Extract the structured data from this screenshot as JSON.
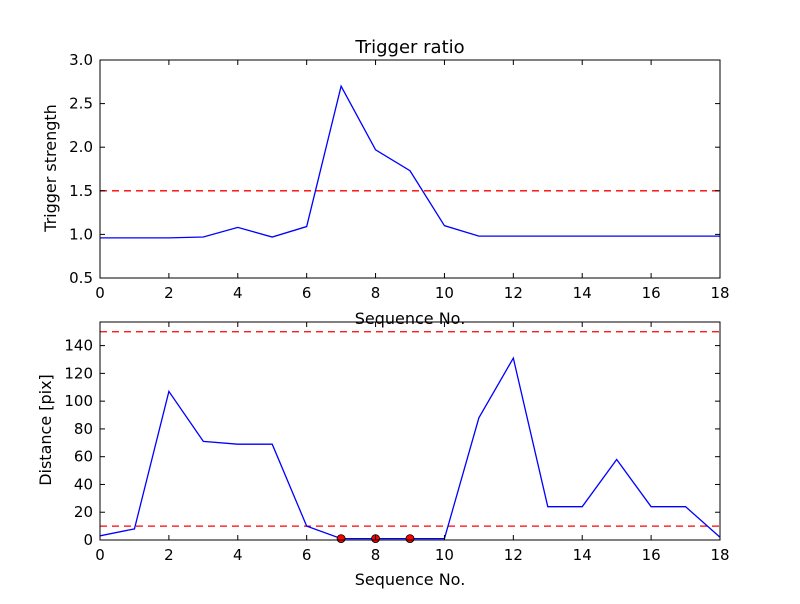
{
  "chart_data": [
    {
      "type": "line",
      "title": "Trigger ratio",
      "xlabel": "Sequence No.",
      "ylabel": "Trigger strength",
      "xlim": [
        0,
        18
      ],
      "ylim": [
        0.5,
        3.0
      ],
      "xticks": [
        "0",
        "2",
        "4",
        "6",
        "8",
        "10",
        "12",
        "14",
        "16",
        "18"
      ],
      "yticks": [
        "0.5",
        "1.0",
        "1.5",
        "2.0",
        "2.5",
        "3.0"
      ],
      "grid": false,
      "series": [
        {
          "color": "#0000ff",
          "x": [
            0,
            1,
            2,
            3,
            4,
            5,
            6,
            7,
            8,
            9,
            10,
            11,
            12,
            13,
            14,
            15,
            16,
            17,
            18
          ],
          "values": [
            0.96,
            0.96,
            0.96,
            0.97,
            1.08,
            0.97,
            1.09,
            2.7,
            1.97,
            1.73,
            1.1,
            0.98,
            0.98,
            0.98,
            0.98,
            0.98,
            0.98,
            0.98,
            0.98
          ]
        }
      ],
      "reference_lines": [
        {
          "y": 1.5,
          "color": "#ff0000",
          "style": "dashed"
        }
      ],
      "markers": []
    },
    {
      "type": "line",
      "title": "",
      "xlabel": "Sequence No.",
      "ylabel": "Distance [pix]",
      "xlim": [
        0,
        18
      ],
      "ylim": [
        0,
        157
      ],
      "xticks": [
        "0",
        "2",
        "4",
        "6",
        "8",
        "10",
        "12",
        "14",
        "16",
        "18"
      ],
      "yticks": [
        "0",
        "20",
        "40",
        "60",
        "80",
        "100",
        "120",
        "140"
      ],
      "grid": false,
      "series": [
        {
          "color": "#0000ff",
          "x": [
            0,
            1,
            2,
            3,
            4,
            5,
            6,
            7,
            8,
            9,
            10,
            11,
            12,
            13,
            14,
            15,
            16,
            17,
            18
          ],
          "values": [
            3,
            8,
            107,
            71,
            69,
            69,
            10,
            1,
            1,
            1,
            1,
            88,
            131,
            24,
            24,
            58,
            24,
            24,
            2
          ]
        }
      ],
      "reference_lines": [
        {
          "y": 150,
          "color": "#ff0000",
          "style": "dashed"
        },
        {
          "y": 10,
          "color": "#ff0000",
          "style": "dashed"
        }
      ],
      "markers": [
        {
          "x": 7,
          "y": 1,
          "color": "#ff0000"
        },
        {
          "x": 8,
          "y": 1,
          "color": "#ff0000"
        },
        {
          "x": 9,
          "y": 1,
          "color": "#ff0000"
        }
      ]
    }
  ]
}
